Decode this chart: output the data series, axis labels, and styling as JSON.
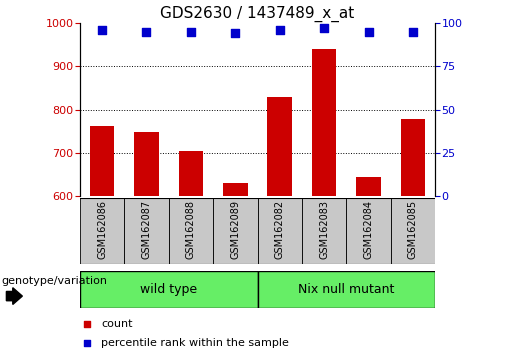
{
  "title": "GDS2630 / 1437489_x_at",
  "categories": [
    "GSM162086",
    "GSM162087",
    "GSM162088",
    "GSM162089",
    "GSM162082",
    "GSM162083",
    "GSM162084",
    "GSM162085"
  ],
  "bar_values": [
    762,
    748,
    706,
    630,
    829,
    940,
    646,
    779
  ],
  "percentile_values": [
    96,
    95,
    95,
    94,
    96,
    97,
    95,
    95
  ],
  "bar_color": "#cc0000",
  "percentile_color": "#0000cc",
  "ylim_left": [
    600,
    1000
  ],
  "ylim_right": [
    0,
    100
  ],
  "yticks_left": [
    600,
    700,
    800,
    900,
    1000
  ],
  "yticks_right": [
    0,
    25,
    50,
    75,
    100
  ],
  "grid_ticks": [
    700,
    800,
    900
  ],
  "groups": [
    {
      "label": "wild type",
      "indices": [
        0,
        1,
        2,
        3
      ],
      "color": "#66ee66"
    },
    {
      "label": "Nix null mutant",
      "indices": [
        4,
        5,
        6,
        7
      ],
      "color": "#66ee66"
    }
  ],
  "group_label_prefix": "genotype/variation",
  "legend_items": [
    {
      "label": "count",
      "color": "#cc0000"
    },
    {
      "label": "percentile rank within the sample",
      "color": "#0000cc"
    }
  ],
  "bg_color": "#ffffff",
  "tick_bg_color": "#c8c8c8",
  "title_fontsize": 11,
  "tick_fontsize": 8,
  "cat_fontsize": 7,
  "legend_fontsize": 8,
  "geno_fontsize": 8
}
